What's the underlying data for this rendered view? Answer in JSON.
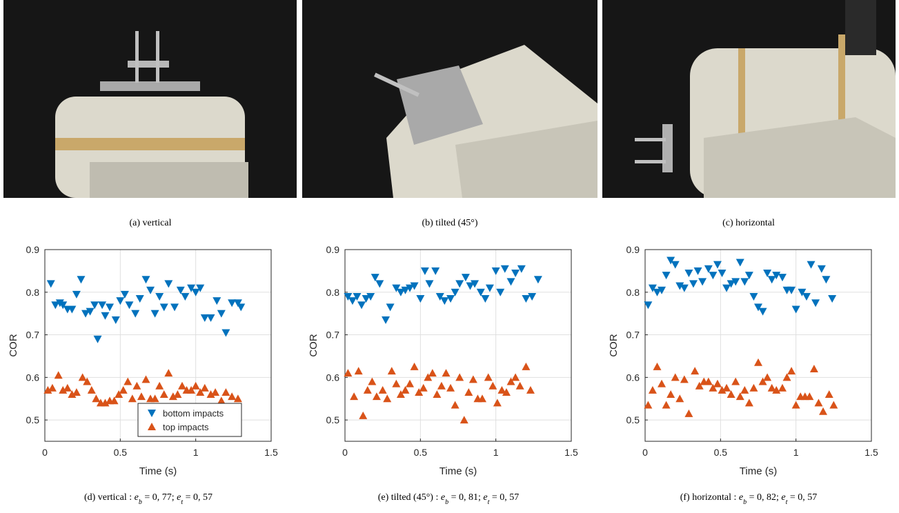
{
  "photos": [
    {
      "caption": "(a) vertical"
    },
    {
      "caption": "(b) tilted (45°)"
    },
    {
      "caption": "(c) horizontal"
    }
  ],
  "chart_data": [
    {
      "type": "scatter",
      "xlabel": "Time (s)",
      "ylabel": "COR",
      "xlim": [
        0,
        1.5
      ],
      "ylim": [
        0.45,
        0.9
      ],
      "xticks": [
        0,
        0.5,
        1,
        1.5
      ],
      "yticks": [
        0.5,
        0.6,
        0.7,
        0.8,
        0.9
      ],
      "grid": true,
      "legend": "lower right",
      "caption": [
        {
          "text": "(d) vertical : "
        },
        {
          "text": "e"
        },
        {
          "sub": "b"
        },
        {
          "text": " = 0, 77; "
        },
        {
          "text": "e"
        },
        {
          "sub": "t"
        },
        {
          "text": " = 0, 57"
        }
      ],
      "series": [
        {
          "name": "bottom impacts",
          "color": "#0072bd",
          "marker": "triangle-down",
          "x": [
            0.04,
            0.07,
            0.1,
            0.12,
            0.15,
            0.18,
            0.21,
            0.24,
            0.27,
            0.3,
            0.33,
            0.35,
            0.38,
            0.4,
            0.43,
            0.47,
            0.5,
            0.53,
            0.56,
            0.6,
            0.63,
            0.67,
            0.7,
            0.73,
            0.76,
            0.79,
            0.82,
            0.86,
            0.9,
            0.93,
            0.97,
            1.0,
            1.03,
            1.06,
            1.1,
            1.14,
            1.17,
            1.2,
            1.24,
            1.28,
            1.3
          ],
          "values": [
            0.82,
            0.77,
            0.775,
            0.77,
            0.76,
            0.76,
            0.795,
            0.83,
            0.75,
            0.755,
            0.77,
            0.69,
            0.77,
            0.745,
            0.765,
            0.735,
            0.78,
            0.795,
            0.77,
            0.75,
            0.785,
            0.83,
            0.805,
            0.75,
            0.79,
            0.765,
            0.82,
            0.765,
            0.805,
            0.79,
            0.81,
            0.8,
            0.81,
            0.74,
            0.74,
            0.78,
            0.75,
            0.705,
            0.775,
            0.775,
            0.765
          ]
        },
        {
          "name": "top impacts",
          "color": "#d95319",
          "marker": "triangle-up",
          "x": [
            0.02,
            0.05,
            0.09,
            0.12,
            0.15,
            0.18,
            0.21,
            0.25,
            0.28,
            0.31,
            0.34,
            0.37,
            0.4,
            0.43,
            0.46,
            0.49,
            0.52,
            0.55,
            0.58,
            0.61,
            0.64,
            0.67,
            0.7,
            0.73,
            0.76,
            0.79,
            0.82,
            0.85,
            0.88,
            0.91,
            0.94,
            0.97,
            1.0,
            1.03,
            1.06,
            1.1,
            1.13,
            1.17,
            1.2,
            1.24,
            1.28
          ],
          "values": [
            0.57,
            0.575,
            0.605,
            0.57,
            0.575,
            0.56,
            0.565,
            0.6,
            0.59,
            0.57,
            0.55,
            0.54,
            0.54,
            0.545,
            0.545,
            0.56,
            0.57,
            0.59,
            0.55,
            0.58,
            0.555,
            0.595,
            0.55,
            0.55,
            0.58,
            0.56,
            0.61,
            0.555,
            0.56,
            0.58,
            0.57,
            0.57,
            0.58,
            0.565,
            0.575,
            0.56,
            0.565,
            0.545,
            0.565,
            0.555,
            0.55
          ]
        }
      ]
    },
    {
      "type": "scatter",
      "xlabel": "Time (s)",
      "ylabel": "COR",
      "xlim": [
        0,
        1.5
      ],
      "ylim": [
        0.45,
        0.9
      ],
      "xticks": [
        0,
        0.5,
        1,
        1.5
      ],
      "yticks": [
        0.5,
        0.6,
        0.7,
        0.8,
        0.9
      ],
      "grid": true,
      "caption": [
        {
          "text": "(e) tilted (45°) : "
        },
        {
          "text": "e"
        },
        {
          "sub": "b"
        },
        {
          "text": " = 0, 81; "
        },
        {
          "text": "e"
        },
        {
          "sub": "t"
        },
        {
          "text": " = 0, 57"
        }
      ],
      "series": [
        {
          "color": "#0072bd",
          "marker": "triangle-down",
          "x": [
            0.02,
            0.05,
            0.08,
            0.11,
            0.14,
            0.17,
            0.2,
            0.23,
            0.27,
            0.3,
            0.34,
            0.37,
            0.4,
            0.43,
            0.46,
            0.5,
            0.53,
            0.56,
            0.6,
            0.63,
            0.66,
            0.7,
            0.73,
            0.76,
            0.8,
            0.83,
            0.86,
            0.9,
            0.93,
            0.96,
            1.0,
            1.03,
            1.06,
            1.1,
            1.13,
            1.17,
            1.2,
            1.24,
            1.28
          ],
          "values": [
            0.79,
            0.78,
            0.79,
            0.77,
            0.785,
            0.79,
            0.835,
            0.82,
            0.735,
            0.765,
            0.81,
            0.8,
            0.805,
            0.81,
            0.815,
            0.785,
            0.85,
            0.82,
            0.85,
            0.79,
            0.78,
            0.785,
            0.8,
            0.82,
            0.835,
            0.815,
            0.82,
            0.8,
            0.785,
            0.81,
            0.85,
            0.8,
            0.855,
            0.825,
            0.845,
            0.855,
            0.785,
            0.79,
            0.83
          ]
        },
        {
          "color": "#d95319",
          "marker": "triangle-up",
          "x": [
            0.02,
            0.06,
            0.09,
            0.12,
            0.15,
            0.18,
            0.21,
            0.25,
            0.28,
            0.31,
            0.34,
            0.37,
            0.4,
            0.43,
            0.46,
            0.49,
            0.52,
            0.55,
            0.58,
            0.61,
            0.64,
            0.67,
            0.7,
            0.73,
            0.76,
            0.79,
            0.82,
            0.85,
            0.88,
            0.91,
            0.95,
            0.98,
            1.01,
            1.04,
            1.07,
            1.1,
            1.13,
            1.16,
            1.2,
            1.23
          ],
          "values": [
            0.61,
            0.555,
            0.615,
            0.51,
            0.57,
            0.59,
            0.555,
            0.57,
            0.55,
            0.615,
            0.585,
            0.56,
            0.57,
            0.585,
            0.625,
            0.565,
            0.575,
            0.6,
            0.61,
            0.56,
            0.58,
            0.61,
            0.575,
            0.535,
            0.6,
            0.5,
            0.565,
            0.595,
            0.55,
            0.55,
            0.6,
            0.58,
            0.54,
            0.57,
            0.565,
            0.59,
            0.6,
            0.58,
            0.625,
            0.57
          ]
        }
      ]
    },
    {
      "type": "scatter",
      "xlabel": "Time (s)",
      "ylabel": "COR",
      "xlim": [
        0,
        1.5
      ],
      "ylim": [
        0.45,
        0.9
      ],
      "xticks": [
        0,
        0.5,
        1,
        1.5
      ],
      "yticks": [
        0.5,
        0.6,
        0.7,
        0.8,
        0.9
      ],
      "grid": true,
      "caption": [
        {
          "text": "(f) horizontal : "
        },
        {
          "text": "e"
        },
        {
          "sub": "b"
        },
        {
          "text": " = 0, 82; "
        },
        {
          "text": "e"
        },
        {
          "sub": "t"
        },
        {
          "text": " = 0, 57"
        }
      ],
      "series": [
        {
          "color": "#0072bd",
          "marker": "triangle-down",
          "x": [
            0.02,
            0.05,
            0.08,
            0.11,
            0.14,
            0.17,
            0.2,
            0.23,
            0.26,
            0.29,
            0.32,
            0.35,
            0.38,
            0.42,
            0.45,
            0.48,
            0.51,
            0.54,
            0.57,
            0.6,
            0.63,
            0.66,
            0.69,
            0.72,
            0.75,
            0.78,
            0.81,
            0.84,
            0.87,
            0.91,
            0.94,
            0.97,
            1.0,
            1.04,
            1.07,
            1.1,
            1.13,
            1.17,
            1.2,
            1.24
          ],
          "values": [
            0.77,
            0.81,
            0.8,
            0.805,
            0.84,
            0.875,
            0.865,
            0.815,
            0.81,
            0.845,
            0.82,
            0.85,
            0.825,
            0.855,
            0.84,
            0.865,
            0.845,
            0.81,
            0.82,
            0.825,
            0.87,
            0.825,
            0.84,
            0.79,
            0.765,
            0.755,
            0.845,
            0.83,
            0.84,
            0.835,
            0.805,
            0.805,
            0.76,
            0.8,
            0.79,
            0.865,
            0.775,
            0.855,
            0.83,
            0.785
          ]
        },
        {
          "color": "#d95319",
          "marker": "triangle-up",
          "x": [
            0.02,
            0.05,
            0.08,
            0.11,
            0.14,
            0.17,
            0.2,
            0.23,
            0.26,
            0.29,
            0.33,
            0.36,
            0.39,
            0.42,
            0.45,
            0.48,
            0.51,
            0.54,
            0.57,
            0.6,
            0.63,
            0.66,
            0.69,
            0.72,
            0.75,
            0.78,
            0.81,
            0.84,
            0.87,
            0.91,
            0.94,
            0.97,
            1.0,
            1.03,
            1.06,
            1.09,
            1.12,
            1.15,
            1.18,
            1.22,
            1.25
          ],
          "values": [
            0.535,
            0.57,
            0.625,
            0.585,
            0.535,
            0.56,
            0.6,
            0.55,
            0.595,
            0.515,
            0.615,
            0.58,
            0.59,
            0.59,
            0.575,
            0.585,
            0.57,
            0.575,
            0.56,
            0.59,
            0.555,
            0.57,
            0.54,
            0.575,
            0.635,
            0.59,
            0.6,
            0.575,
            0.57,
            0.575,
            0.6,
            0.615,
            0.535,
            0.555,
            0.555,
            0.555,
            0.62,
            0.54,
            0.52,
            0.56,
            0.535
          ]
        }
      ]
    }
  ]
}
